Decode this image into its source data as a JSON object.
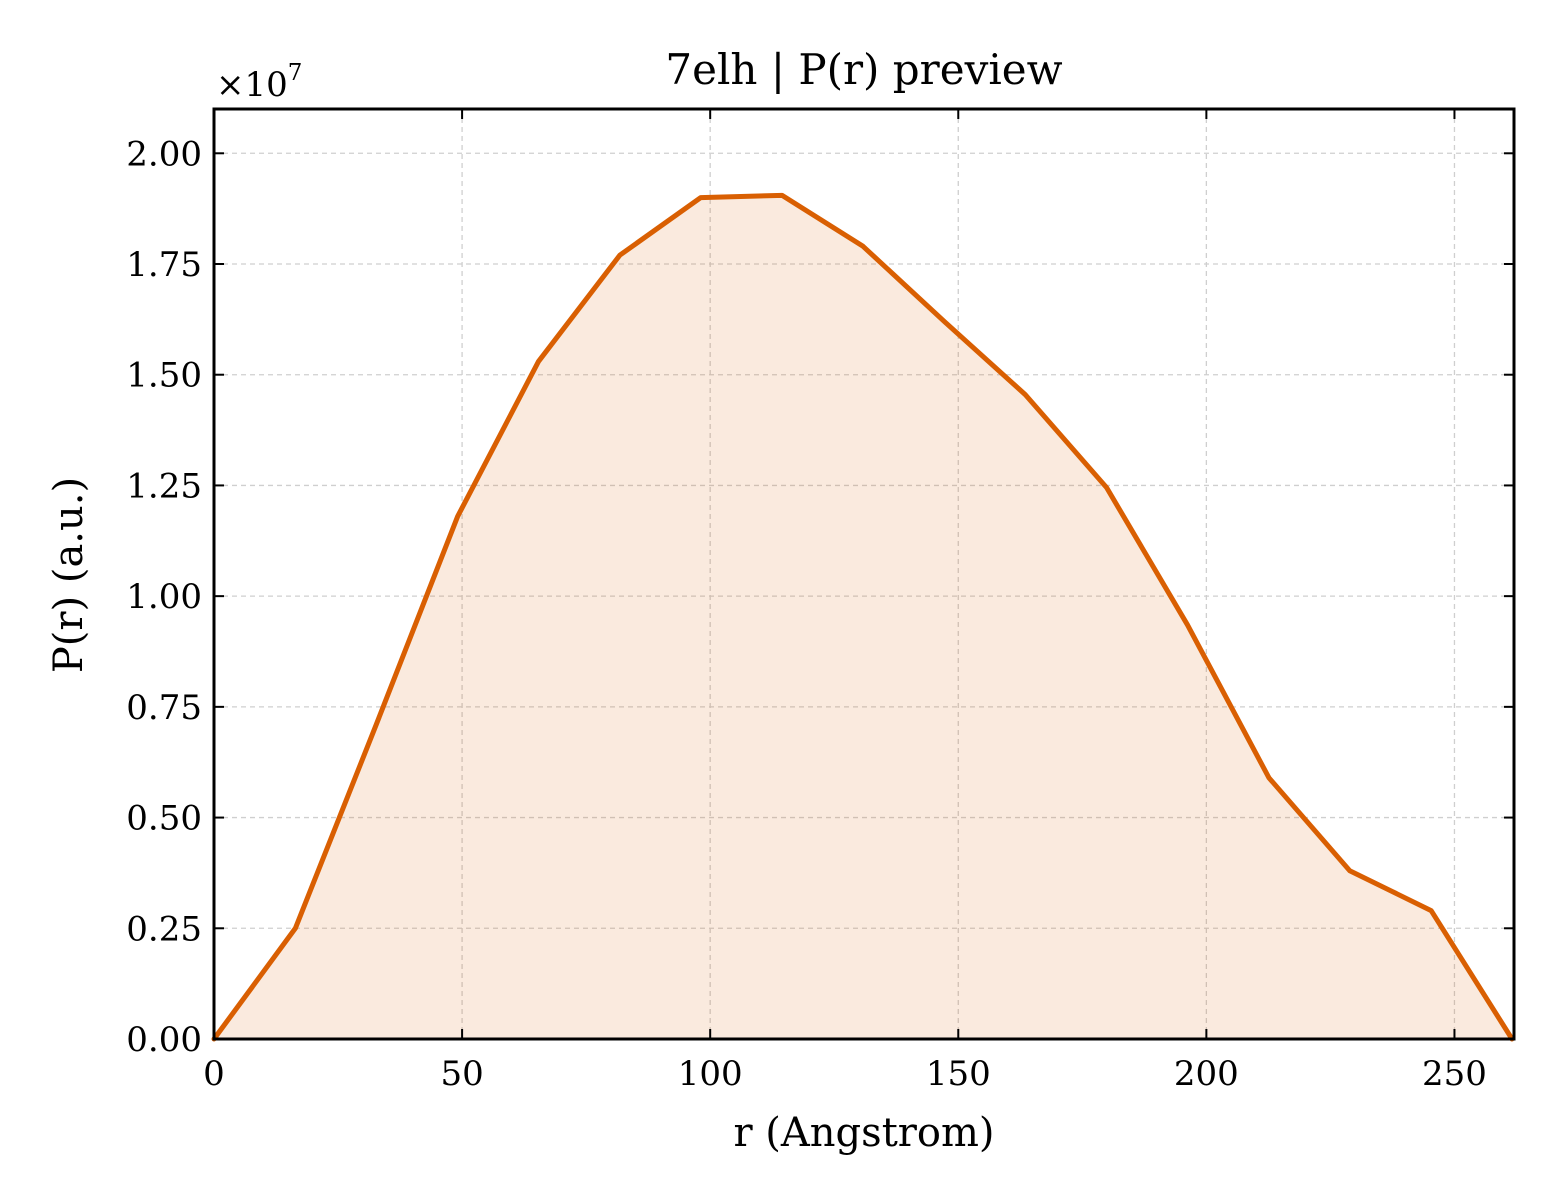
{
  "chart_data": {
    "type": "area",
    "title": "7elh | P(r) preview",
    "xlabel": "r (Angstrom)",
    "ylabel": "P(r) (a.u.)",
    "y_multiplier_label": "×10",
    "y_multiplier_exponent": "7",
    "xlim": [
      0,
      262
    ],
    "ylim": [
      0,
      2.1
    ],
    "x_ticks": [
      0,
      50,
      100,
      150,
      200,
      250
    ],
    "x_tick_labels": [
      "0",
      "50",
      "100",
      "150",
      "200",
      "250"
    ],
    "y_ticks": [
      0,
      0.25,
      0.5,
      0.75,
      1.0,
      1.25,
      1.5,
      1.75,
      2.0
    ],
    "y_tick_labels": [
      "0.00",
      "0.25",
      "0.50",
      "0.75",
      "1.00",
      "1.25",
      "1.50",
      "1.75",
      "2.00"
    ],
    "grid": true,
    "series": [
      {
        "color": "#d95f02",
        "fill_color": "#d95f02",
        "fill_opacity": 0.13,
        "x": [
          0,
          16.4,
          32.7,
          49.1,
          65.4,
          81.8,
          98.1,
          114.5,
          130.8,
          147.2,
          163.5,
          179.9,
          196.2,
          212.6,
          228.9,
          245.3,
          261.6
        ],
        "y": [
          0,
          0.25,
          0.71,
          1.18,
          1.53,
          1.77,
          1.9,
          1.905,
          1.79,
          1.62,
          1.455,
          1.245,
          0.935,
          0.59,
          0.38,
          0.29,
          0
        ]
      }
    ]
  }
}
